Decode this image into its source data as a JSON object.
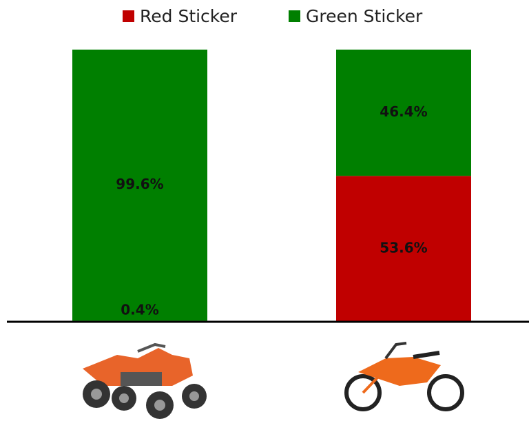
{
  "chart_data": {
    "type": "stacked_bar",
    "categories": [
      null,
      null
    ],
    "series": [
      {
        "name": "Red Sticker",
        "color": "#c00000",
        "values": [
          0.4,
          53.6
        ],
        "value_labels": [
          "0.4%",
          "53.6%"
        ]
      },
      {
        "name": "Green Sticker",
        "color": "#007f00",
        "values": [
          99.6,
          46.4
        ],
        "value_labels": [
          "99.6%",
          "46.4%"
        ]
      }
    ],
    "ylim": [
      0,
      100
    ],
    "legend": "top"
  }
}
